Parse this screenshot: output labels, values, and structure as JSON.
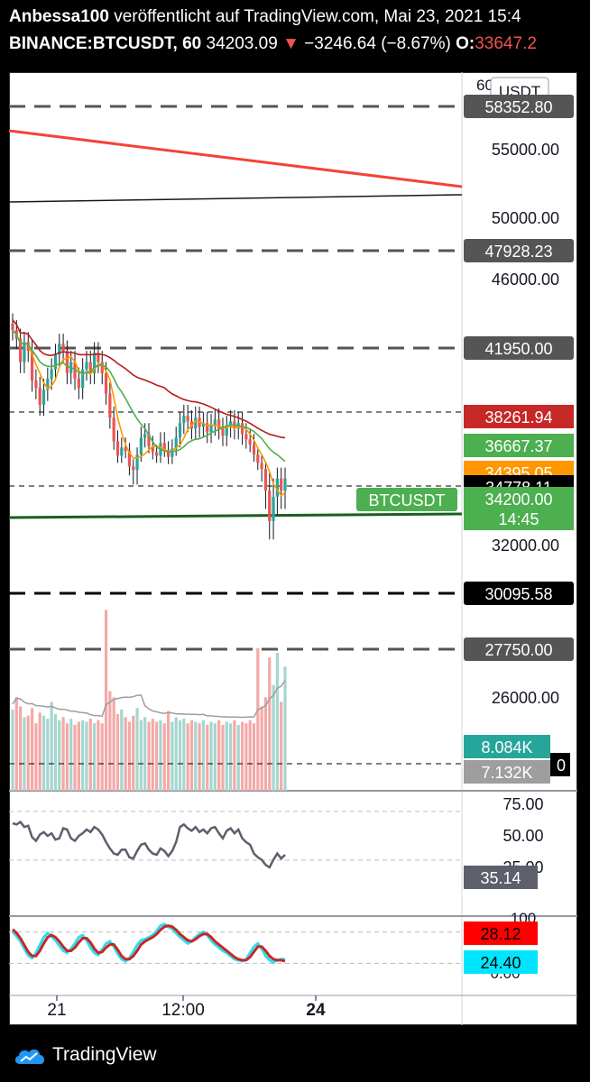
{
  "header": {
    "author": "Anbessa100",
    "published_text": "veröffentlicht auf TradingView.com, Mai 23, 2021 15:4",
    "symbol": "BINANCE:BTCUSDT, 60",
    "last_price": "34203.09",
    "change_arrow": "▼",
    "change": "−3246.64 (−8.67%)",
    "open_label": "O:",
    "open_value": "33647.2"
  },
  "footer": {
    "brand": "TradingView"
  },
  "colors": {
    "up": "#26a69a",
    "down": "#ef5350",
    "ma_orange": "#ff9800",
    "ma_green": "#4caf50",
    "ma_darkred": "#b71c1c",
    "trend_red": "#f44336",
    "support_green": "#1b5e20"
  },
  "chart_data": [
    {
      "type": "line",
      "title": "BINANCE:BTCUSDT, 60",
      "currency_label": "USDT",
      "x_ticks": [
        "21",
        "12:00",
        "24"
      ],
      "y_ticks": [
        "55000.00",
        "50000.00",
        "46000.00",
        "32000.00",
        "26000.00"
      ],
      "y_axis_partial_top": "60",
      "horizontal_levels": [
        {
          "value": "58352.80",
          "style": "dashed",
          "label_bg": "#555555"
        },
        {
          "value": "47928.23",
          "style": "dashed",
          "label_bg": "#555555"
        },
        {
          "value": "41950.00",
          "style": "dashed",
          "label_bg": "#555555"
        },
        {
          "value": "30095.58",
          "style": "dashed",
          "label_bg": "#000000"
        },
        {
          "value": "27750.00",
          "style": "dashed",
          "label_bg": "#555555"
        }
      ],
      "price_labels": [
        {
          "value": "38261.94",
          "bg": "#c62828"
        },
        {
          "value": "36667.37",
          "bg": "#4caf50"
        },
        {
          "value": "34395.05",
          "bg": "#ff9800"
        },
        {
          "value": "34778.11",
          "bg": "#000000"
        },
        {
          "value": "34200.00",
          "bg": "#4caf50"
        },
        {
          "value": "14:45",
          "bg": "#4caf50"
        }
      ],
      "symbol_tag": "BTCUSDT",
      "candles_close": [
        43000,
        42500,
        41200,
        42300,
        41800,
        40200,
        39800,
        38900,
        39700,
        40300,
        40800,
        41600,
        42200,
        41800,
        40600,
        41200,
        40300,
        39800,
        40800,
        41200,
        40600,
        41700,
        41200,
        40600,
        39500,
        38200,
        36900,
        35800,
        36500,
        36200,
        34900,
        34600,
        35900,
        37100,
        37300,
        36600,
        36100,
        35800,
        36800,
        36300,
        35700,
        36400,
        37100,
        37900,
        38300,
        38000,
        37600,
        38200,
        37700,
        37900,
        37400,
        37800,
        38100,
        37600,
        37200,
        37700,
        38000,
        37600,
        37900,
        37300,
        37000,
        36700,
        35900,
        35200,
        34700,
        33800,
        32800,
        33600,
        34200,
        33800,
        34200
      ],
      "volume": [
        5.3,
        6.1,
        5.5,
        4.8,
        4.9,
        5.4,
        4.4,
        5.1,
        4.9,
        4.7,
        5.8,
        5.0,
        4.6,
        4.8,
        4.4,
        4.7,
        4.3,
        4.5,
        4.6,
        4.5,
        4.7,
        4.4,
        4.6,
        4.4,
        11.8,
        6.5,
        6.1,
        5.0,
        5.3,
        4.8,
        4.5,
        4.9,
        5.4,
        4.6,
        4.8,
        4.5,
        4.7,
        4.5,
        4.6,
        4.4,
        5.2,
        4.5,
        4.8,
        4.6,
        4.7,
        4.4,
        4.6,
        4.5,
        4.4,
        4.6,
        4.3,
        4.5,
        4.4,
        4.6,
        4.3,
        4.5,
        4.4,
        4.6,
        4.3,
        4.5,
        4.4,
        4.6,
        4.4,
        9.3,
        5.5,
        6.1,
        8.7,
        6.9,
        9.0,
        5.8,
        8.1
      ],
      "volume_ma_label": "8.084K",
      "volume_ma2_label": "7.132K",
      "volume_partial_0": "0",
      "rsi": {
        "ticks": [
          "75.00",
          "50.00",
          "25.00"
        ],
        "last": "35.14",
        "values": [
          60,
          59,
          61,
          57,
          58,
          49,
          46,
          51,
          53,
          50,
          52,
          47,
          48,
          56,
          55,
          48,
          46,
          50,
          52,
          55,
          53,
          57,
          55,
          51,
          45,
          40,
          36,
          35,
          39,
          39,
          33,
          32,
          38,
          43,
          44,
          39,
          36,
          35,
          40,
          38,
          34,
          38,
          45,
          57,
          59,
          56,
          54,
          57,
          53,
          55,
          52,
          56,
          57,
          52,
          48,
          54,
          56,
          52,
          55,
          48,
          45,
          43,
          36,
          33,
          31,
          27,
          25,
          31,
          36,
          32,
          35
        ]
      },
      "stoch": {
        "ticks": [
          "100",
          "0.00"
        ],
        "k_last": "28.12",
        "d_last": "24.40",
        "k": [
          80,
          72,
          62,
          48,
          35,
          30,
          40,
          55,
          70,
          78,
          72,
          64,
          54,
          44,
          40,
          48,
          58,
          70,
          74,
          64,
          50,
          40,
          36,
          46,
          58,
          62,
          52,
          38,
          28,
          24,
          30,
          42,
          55,
          64,
          66,
          70,
          74,
          82,
          92,
          95,
          90,
          86,
          78,
          70,
          64,
          58,
          62,
          70,
          76,
          80,
          74,
          64,
          56,
          50,
          44,
          40,
          34,
          28,
          26,
          24,
          28,
          40,
          52,
          58,
          48,
          34,
          26,
          22,
          26,
          28,
          28
        ],
        "d": [
          85,
          78,
          68,
          55,
          42,
          34,
          34,
          44,
          58,
          70,
          74,
          70,
          62,
          52,
          44,
          44,
          50,
          60,
          68,
          68,
          60,
          48,
          40,
          42,
          50,
          56,
          56,
          46,
          34,
          28,
          28,
          34,
          44,
          56,
          62,
          66,
          70,
          76,
          84,
          90,
          92,
          90,
          84,
          76,
          70,
          64,
          62,
          66,
          72,
          76,
          76,
          70,
          62,
          56,
          50,
          44,
          38,
          32,
          28,
          26,
          26,
          32,
          42,
          52,
          52,
          44,
          34,
          28,
          26,
          26,
          24
        ]
      }
    }
  ]
}
